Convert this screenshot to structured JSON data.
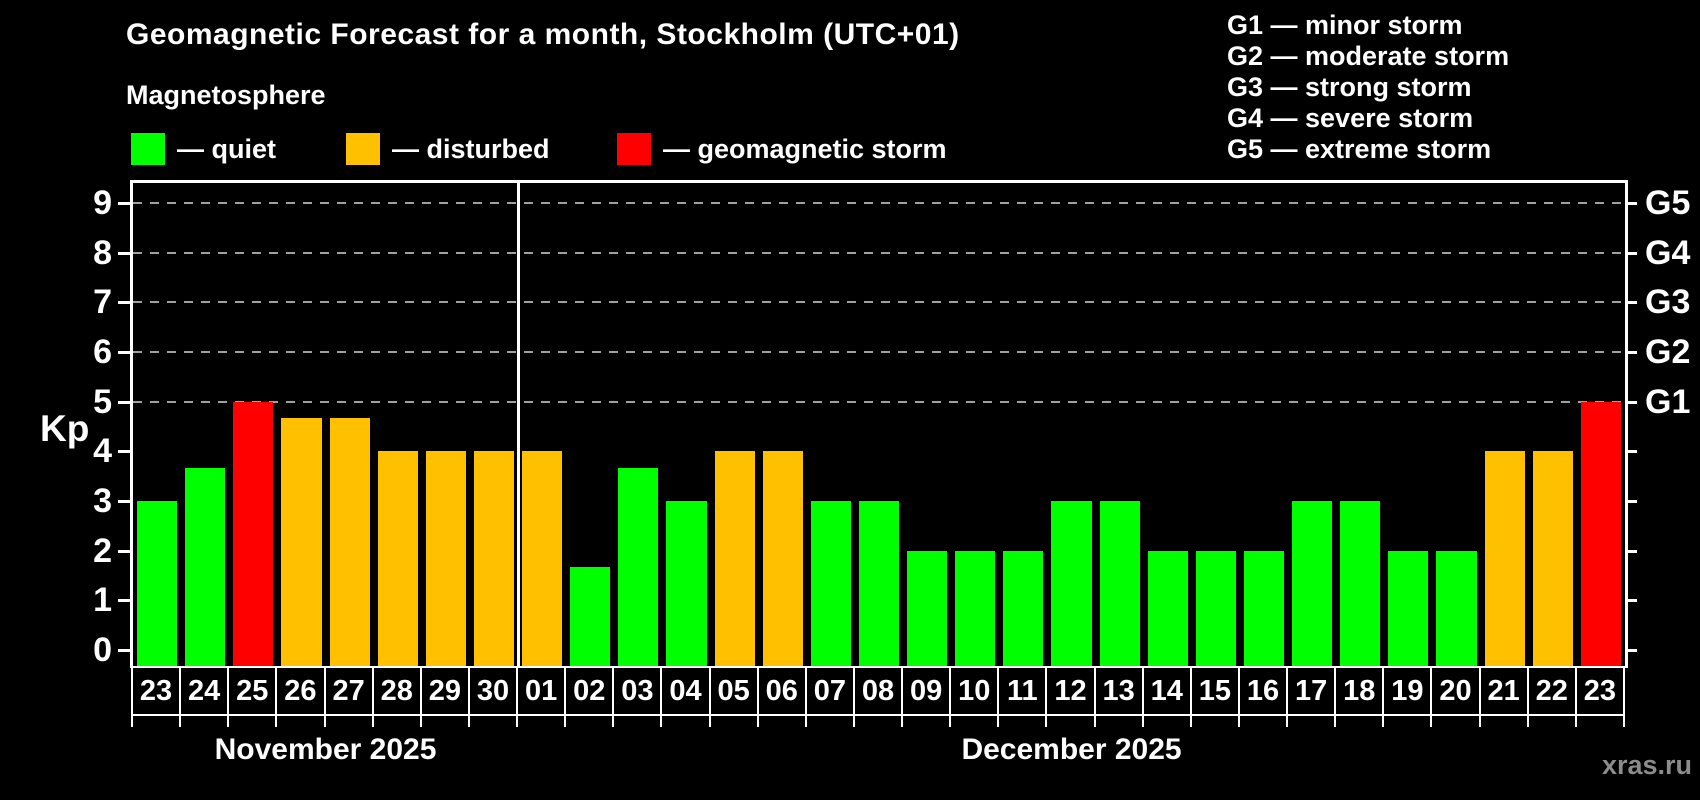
{
  "title": "Geomagnetic Forecast for a month, Stockholm (UTC+01)",
  "subtitle": "Magnetosphere",
  "status_legend": [
    {
      "key": "quiet",
      "label": "— quiet"
    },
    {
      "key": "disturbed",
      "label": "— disturbed"
    },
    {
      "key": "storm",
      "label": "— geomagnetic storm"
    }
  ],
  "g_legend": [
    {
      "code": "G1",
      "desc": "minor storm"
    },
    {
      "code": "G2",
      "desc": "moderate storm"
    },
    {
      "code": "G3",
      "desc": "strong storm"
    },
    {
      "code": "G4",
      "desc": "severe storm"
    },
    {
      "code": "G5",
      "desc": "extreme storm"
    }
  ],
  "watermark": "xras.ru",
  "colors": {
    "quiet": "#00ff00",
    "disturbed": "#ffc000",
    "storm": "#ff0000",
    "background": "#000000",
    "axis": "#ffffff",
    "grid": "#a0a0a0",
    "text": "#ffffff",
    "watermark": "#8c8c8c"
  },
  "chart_data": {
    "type": "bar",
    "title": "Geomagnetic Forecast for a month, Stockholm (UTC+01)",
    "xlabel": "",
    "ylabel": "Kp",
    "ylim": [
      -0.4,
      9.4
    ],
    "yticks": [
      0,
      1,
      2,
      3,
      4,
      5,
      6,
      7,
      8,
      9
    ],
    "grid_levels": [
      5,
      6,
      7,
      8,
      9
    ],
    "grid_on": true,
    "legend_position": "top",
    "right_axis": [
      {
        "level": 5,
        "label": "G1"
      },
      {
        "level": 6,
        "label": "G2"
      },
      {
        "level": 7,
        "label": "G3"
      },
      {
        "level": 8,
        "label": "G4"
      },
      {
        "level": 9,
        "label": "G5"
      }
    ],
    "categories": [
      "23",
      "24",
      "25",
      "26",
      "27",
      "28",
      "29",
      "30",
      "01",
      "02",
      "03",
      "04",
      "05",
      "06",
      "07",
      "08",
      "09",
      "10",
      "11",
      "12",
      "13",
      "14",
      "15",
      "16",
      "17",
      "18",
      "19",
      "20",
      "21",
      "22",
      "23"
    ],
    "values": [
      3,
      3.67,
      5,
      4.67,
      4.67,
      4,
      4,
      4,
      4,
      1.67,
      3.67,
      3,
      4,
      4,
      3,
      3,
      2,
      2,
      2,
      3,
      3,
      2,
      2,
      2,
      3,
      3,
      2,
      2,
      4,
      4,
      5
    ],
    "status": [
      "quiet",
      "quiet",
      "storm",
      "disturbed",
      "disturbed",
      "disturbed",
      "disturbed",
      "disturbed",
      "disturbed",
      "quiet",
      "quiet",
      "quiet",
      "disturbed",
      "disturbed",
      "quiet",
      "quiet",
      "quiet",
      "quiet",
      "quiet",
      "quiet",
      "quiet",
      "quiet",
      "quiet",
      "quiet",
      "quiet",
      "quiet",
      "quiet",
      "quiet",
      "disturbed",
      "disturbed",
      "storm"
    ],
    "months": [
      {
        "label": "November 2025",
        "start_index": 0,
        "end_index": 7
      },
      {
        "label": "December 2025",
        "start_index": 8,
        "end_index": 30
      }
    ],
    "month_divider_after_index": 7
  }
}
